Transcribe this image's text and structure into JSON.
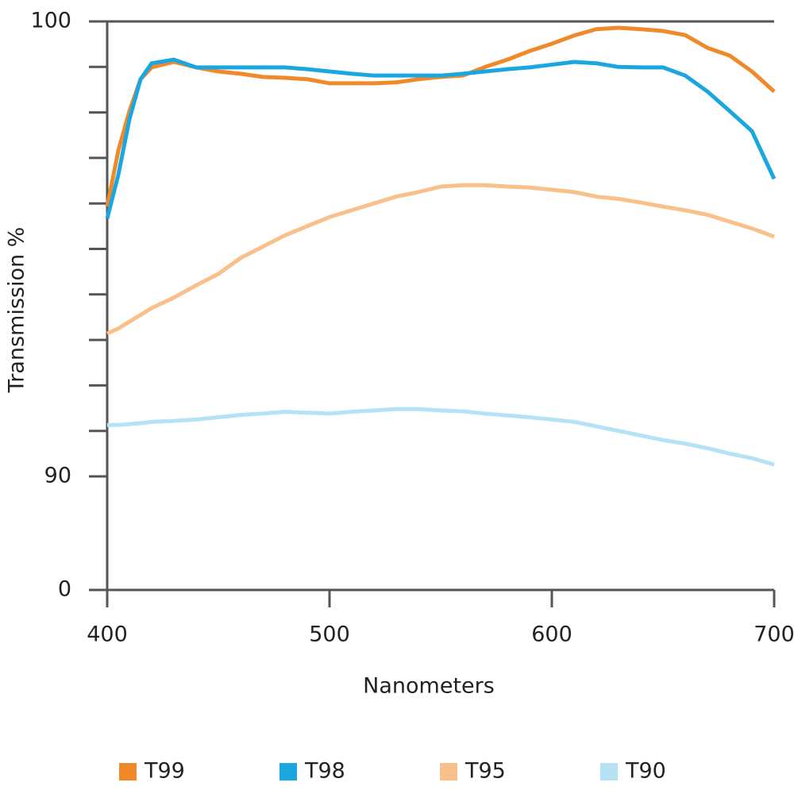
{
  "chart_data": {
    "type": "line",
    "x_label": "Nanometers",
    "y_label": "Transmission %",
    "x": [
      400,
      405,
      410,
      415,
      420,
      430,
      440,
      450,
      460,
      470,
      480,
      490,
      500,
      510,
      520,
      530,
      540,
      550,
      560,
      570,
      580,
      590,
      600,
      610,
      620,
      630,
      640,
      650,
      660,
      670,
      680,
      690,
      700
    ],
    "series": [
      {
        "name": "T99",
        "color": "#f0892a",
        "values": [
          95.93,
          97.16,
          98.03,
          98.73,
          98.99,
          99.11,
          98.99,
          98.9,
          98.85,
          98.78,
          98.76,
          98.73,
          98.64,
          98.64,
          98.64,
          98.66,
          98.73,
          98.78,
          98.81,
          99.0,
          99.16,
          99.35,
          99.51,
          99.69,
          99.83,
          99.86,
          99.83,
          99.79,
          99.7,
          99.42,
          99.25,
          98.9,
          98.46
        ]
      },
      {
        "name": "T98",
        "color": "#1aa7e0",
        "values": [
          95.67,
          96.63,
          97.85,
          98.73,
          99.08,
          99.16,
          98.99,
          98.99,
          98.99,
          98.99,
          98.99,
          98.95,
          98.9,
          98.85,
          98.81,
          98.81,
          98.81,
          98.81,
          98.85,
          98.9,
          98.95,
          98.99,
          99.05,
          99.11,
          99.08,
          99.0,
          98.99,
          98.99,
          98.81,
          98.46,
          98.03,
          97.59,
          96.54
        ]
      },
      {
        "name": "T95",
        "color": "#f9c08c",
        "values": [
          93.14,
          93.25,
          93.4,
          93.55,
          93.7,
          93.93,
          94.2,
          94.45,
          94.8,
          95.05,
          95.3,
          95.5,
          95.7,
          95.85,
          96.0,
          96.15,
          96.25,
          96.37,
          96.4,
          96.4,
          96.37,
          96.35,
          96.3,
          96.25,
          96.15,
          96.1,
          96.02,
          95.93,
          95.85,
          95.75,
          95.6,
          95.45,
          95.27
        ]
      },
      {
        "name": "T90",
        "color": "#b6e2f5",
        "values": [
          91.13,
          91.13,
          91.15,
          91.17,
          91.2,
          91.22,
          91.25,
          91.3,
          91.35,
          91.38,
          91.42,
          91.4,
          91.38,
          91.42,
          91.45,
          91.48,
          91.48,
          91.45,
          91.43,
          91.38,
          91.34,
          91.3,
          91.25,
          91.2,
          91.1,
          91.0,
          90.9,
          90.8,
          90.72,
          90.62,
          90.5,
          90.4,
          90.26
        ]
      }
    ],
    "xlim": [
      400,
      700
    ],
    "xticks": [
      400,
      500,
      600,
      700
    ],
    "ylim": [
      0,
      100
    ],
    "yticks": [
      0,
      90,
      100
    ],
    "minor_yticks": [
      91,
      92,
      93,
      94,
      95,
      96,
      97,
      98,
      99
    ],
    "legend": "bottom"
  }
}
